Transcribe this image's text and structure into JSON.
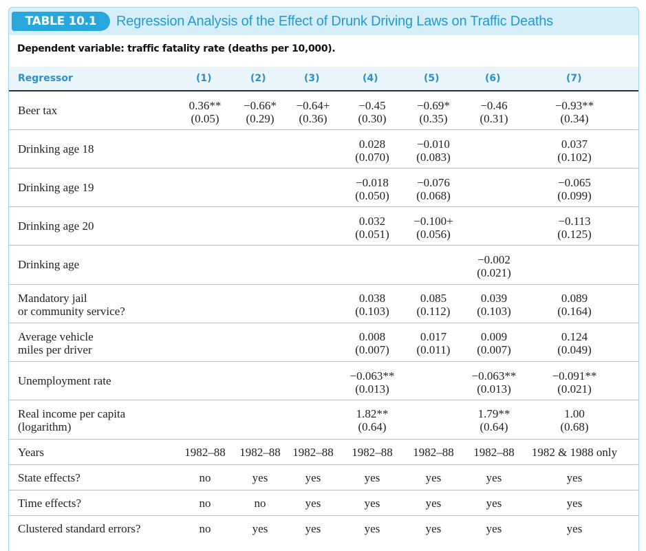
{
  "header": {
    "table_label": "TABLE 10.1",
    "title": "Regression Analysis of the Effect of Drunk Driving Laws on Traffic Deaths",
    "dependent_variable": "Dependent variable: traffic fatality rate (deaths per 10,000)."
  },
  "columns": {
    "regressor": "Regressor",
    "c1": "(1)",
    "c2": "(2)",
    "c3": "(3)",
    "c4": "(4)",
    "c5": "(5)",
    "c6": "(6)",
    "c7": "(7)"
  },
  "rows": {
    "beer_tax": {
      "label": "Beer tax",
      "c1": [
        "0.36**",
        "(0.05)"
      ],
      "c2": [
        "−0.66*",
        "(0.29)"
      ],
      "c3": [
        "−0.64+",
        "(0.36)"
      ],
      "c4": [
        "−0.45",
        "(0.30)"
      ],
      "c5": [
        "−0.69*",
        "(0.35)"
      ],
      "c6": [
        "−0.46",
        "(0.31)"
      ],
      "c7": [
        "−0.93**",
        "(0.34)"
      ]
    },
    "age18": {
      "label": "Drinking age 18",
      "c4": [
        "0.028",
        "(0.070)"
      ],
      "c5": [
        "−0.010",
        "(0.083)"
      ],
      "c7": [
        "0.037",
        "(0.102)"
      ]
    },
    "age19": {
      "label": "Drinking age 19",
      "c4": [
        "−0.018",
        "(0.050)"
      ],
      "c5": [
        "−0.076",
        "(0.068)"
      ],
      "c7": [
        "−0.065",
        "(0.099)"
      ]
    },
    "age20": {
      "label": "Drinking age 20",
      "c4": [
        "0.032",
        "(0.051)"
      ],
      "c5": [
        "−0.100+",
        "(0.056)"
      ],
      "c7": [
        "−0.113",
        "(0.125)"
      ]
    },
    "drinking_age": {
      "label": "Drinking age",
      "c6": [
        "−0.002",
        "(0.021)"
      ]
    },
    "mandatory_jail": {
      "label_1": "Mandatory jail",
      "label_2": "or community service?",
      "c4": [
        "0.038",
        "(0.103)"
      ],
      "c5": [
        "0.085",
        "(0.112)"
      ],
      "c6": [
        "0.039",
        "(0.103)"
      ],
      "c7": [
        "0.089",
        "(0.164)"
      ]
    },
    "vehicle_miles": {
      "label_1": "Average vehicle",
      "label_2": "miles per driver",
      "c4": [
        "0.008",
        "(0.007)"
      ],
      "c5": [
        "0.017",
        "(0.011)"
      ],
      "c6": [
        "0.009",
        "(0.007)"
      ],
      "c7": [
        "0.124",
        "(0.049)"
      ]
    },
    "unemployment": {
      "label": "Unemployment rate",
      "c4": [
        "−0.063**",
        "(0.013)"
      ],
      "c6": [
        "−0.063**",
        "(0.013)"
      ],
      "c7": [
        "−0.091**",
        "(0.021)"
      ]
    },
    "real_income": {
      "label_1": "Real income per capita",
      "label_2": "(logarithm)",
      "c4": [
        "1.82**",
        "(0.64)"
      ],
      "c6": [
        "1.79**",
        "(0.64)"
      ],
      "c7": [
        "1.00",
        "(0.68)"
      ]
    },
    "years": {
      "label": "Years",
      "values": [
        "1982–88",
        "1982–88",
        "1982–88",
        "1982–88",
        "1982–88",
        "1982–88",
        "1982 & 1988 only"
      ]
    },
    "state_effects": {
      "label": "State effects?",
      "values": [
        "no",
        "yes",
        "yes",
        "yes",
        "yes",
        "yes",
        "yes"
      ]
    },
    "time_effects": {
      "label": "Time effects?",
      "values": [
        "no",
        "no",
        "yes",
        "yes",
        "yes",
        "yes",
        "yes"
      ]
    },
    "clustered_se": {
      "label": "Clustered standard errors?",
      "values": [
        "no",
        "yes",
        "yes",
        "yes",
        "yes",
        "yes",
        "yes"
      ]
    }
  },
  "colors": {
    "accent": "#27a7dc",
    "title_text": "#1f9ad4",
    "title_band": "#d6eef8",
    "header_band": "#e9f5fb"
  }
}
